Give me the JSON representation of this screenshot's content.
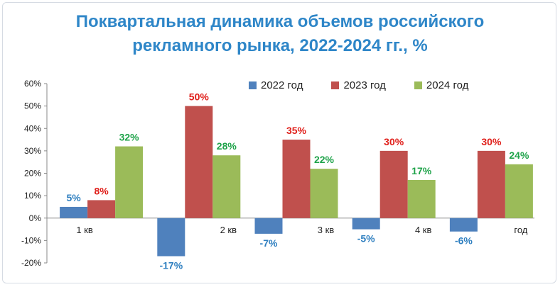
{
  "title_line1": "Поквартальная динамика объемов российского",
  "title_line2": "рекламного рынка, 2022-2024 гг., %",
  "chart_data": {
    "type": "bar",
    "title": "Поквартальная динамика объемов российского рекламного рынка, 2022-2024 гг., %",
    "categories": [
      "1 кв",
      "2 кв",
      "3 кв",
      "4 кв",
      "год"
    ],
    "series": [
      {
        "name": "2022 год",
        "color": "#4f81bd",
        "label_color": "#2e7fc0",
        "values": [
          5,
          -17,
          -7,
          -5,
          -6
        ],
        "labels": [
          "5%",
          "-17%",
          "-7%",
          "-5%",
          "-6%"
        ]
      },
      {
        "name": "2023 год",
        "color": "#c0504d",
        "label_color": "#e0201b",
        "values": [
          8,
          50,
          35,
          30,
          30
        ],
        "labels": [
          "8%",
          "50%",
          "35%",
          "30%",
          "30%"
        ]
      },
      {
        "name": "2024 год",
        "color": "#9bbb59",
        "label_color": "#1fa34a",
        "values": [
          32,
          28,
          22,
          17,
          24
        ],
        "labels": [
          "32%",
          "28%",
          "22%",
          "17%",
          "24%"
        ]
      }
    ],
    "ylim": [
      -20,
      60
    ],
    "yticks": [
      -20,
      -10,
      0,
      10,
      20,
      30,
      40,
      50,
      60
    ],
    "ytick_labels": [
      "-20%",
      "-10%",
      "0%",
      "10%",
      "20%",
      "30%",
      "40%",
      "50%",
      "60%"
    ],
    "grid": false,
    "legend_position": "top-right"
  }
}
